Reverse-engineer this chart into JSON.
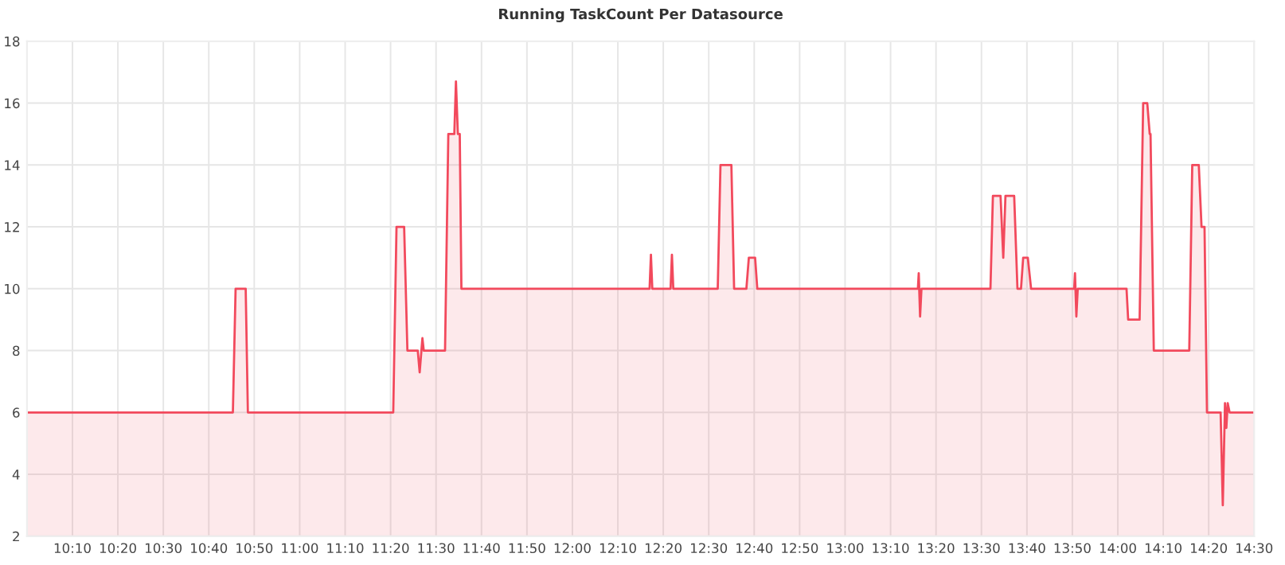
{
  "chart_data": {
    "type": "area",
    "title": "Running TaskCount Per Datasource",
    "x": [
      10.0,
      10.755,
      10.765,
      10.802,
      10.81,
      11.343,
      11.355,
      11.383,
      11.395,
      11.433,
      11.44,
      11.45,
      11.455,
      11.533,
      11.545,
      11.567,
      11.573,
      11.58,
      11.587,
      11.593,
      12.283,
      12.288,
      12.293,
      12.36,
      12.365,
      12.37,
      12.533,
      12.543,
      12.583,
      12.593,
      12.638,
      12.647,
      12.67,
      12.678,
      13.267,
      13.27,
      13.275,
      13.28,
      13.533,
      13.542,
      13.57,
      13.58,
      13.588,
      13.62,
      13.632,
      13.645,
      13.653,
      13.67,
      13.682,
      13.84,
      13.843,
      13.848,
      13.853,
      14.032,
      14.038,
      14.08,
      14.093,
      14.108,
      14.117,
      14.12,
      14.132,
      14.262,
      14.273,
      14.297,
      14.307,
      14.318,
      14.327,
      14.377,
      14.385,
      14.393,
      14.398,
      14.403,
      14.41,
      14.5
    ],
    "series": [
      {
        "color": "#f2495c",
        "values": [
          6,
          6,
          10,
          10,
          6,
          6,
          12,
          12,
          8,
          8,
          7.3,
          8.4,
          8,
          8,
          15,
          15,
          16.7,
          15,
          15,
          10,
          10,
          11.1,
          10,
          10,
          11.1,
          10,
          10,
          14,
          14,
          10,
          10,
          11,
          11,
          10,
          10,
          10.5,
          9.1,
          10,
          10,
          13,
          13,
          11,
          13,
          13,
          10,
          10,
          11,
          11,
          10,
          10,
          10.5,
          9.1,
          10,
          10,
          9,
          9,
          16,
          16,
          15,
          15,
          8,
          8,
          14,
          14,
          12,
          12,
          6,
          6,
          3,
          6.3,
          5.5,
          6.3,
          6,
          6
        ]
      }
    ],
    "xlim": [
      10.0,
      14.5
    ],
    "xticks": [
      {
        "value": 10.1667,
        "label": "10:10"
      },
      {
        "value": 10.3333,
        "label": "10:20"
      },
      {
        "value": 10.5,
        "label": "10:30"
      },
      {
        "value": 10.6667,
        "label": "10:40"
      },
      {
        "value": 10.8333,
        "label": "10:50"
      },
      {
        "value": 11,
        "label": "11:00"
      },
      {
        "value": 11.1667,
        "label": "11:10"
      },
      {
        "value": 11.3333,
        "label": "11:20"
      },
      {
        "value": 11.5,
        "label": "11:30"
      },
      {
        "value": 11.6667,
        "label": "11:40"
      },
      {
        "value": 11.8333,
        "label": "11:50"
      },
      {
        "value": 12,
        "label": "12:00"
      },
      {
        "value": 12.1667,
        "label": "12:10"
      },
      {
        "value": 12.3333,
        "label": "12:20"
      },
      {
        "value": 12.5,
        "label": "12:30"
      },
      {
        "value": 12.6667,
        "label": "12:40"
      },
      {
        "value": 12.8333,
        "label": "12:50"
      },
      {
        "value": 13,
        "label": "13:00"
      },
      {
        "value": 13.1667,
        "label": "13:10"
      },
      {
        "value": 13.3333,
        "label": "13:20"
      },
      {
        "value": 13.5,
        "label": "13:30"
      },
      {
        "value": 13.6667,
        "label": "13:40"
      },
      {
        "value": 13.8333,
        "label": "13:50"
      },
      {
        "value": 14,
        "label": "14:00"
      },
      {
        "value": 14.1667,
        "label": "14:10"
      },
      {
        "value": 14.3333,
        "label": "14:20"
      },
      {
        "value": 14.5,
        "label": "14:30"
      }
    ],
    "ylim": [
      2,
      18
    ],
    "yticks": [
      2,
      4,
      6,
      8,
      10,
      12,
      14,
      16,
      18
    ],
    "grid": true
  }
}
